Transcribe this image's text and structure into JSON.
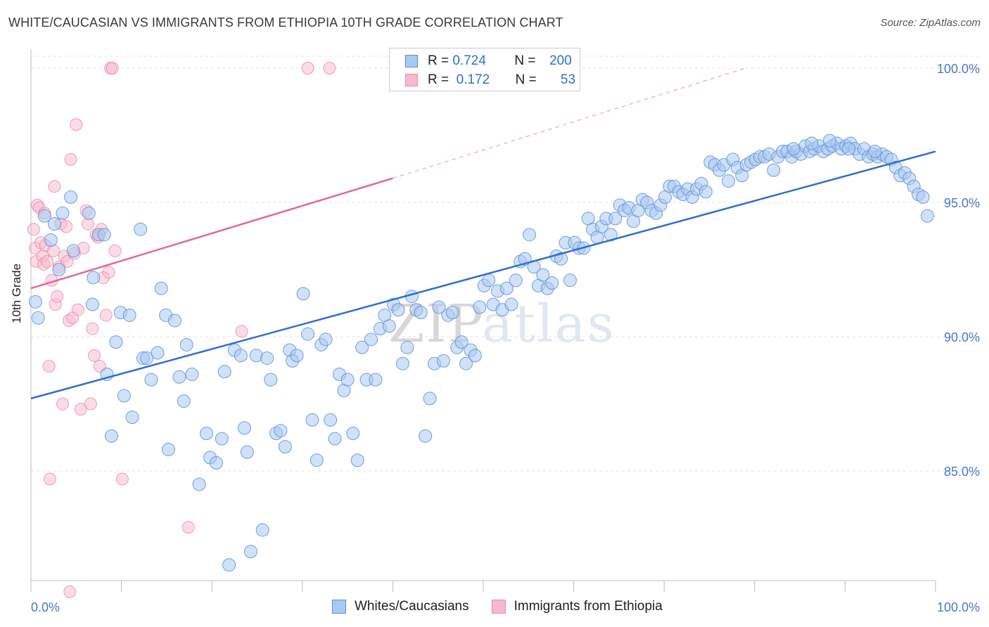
{
  "header": {
    "title": "WHITE/CAUCASIAN VS IMMIGRANTS FROM ETHIOPIA 10TH GRADE CORRELATION CHART",
    "source": "Source: ZipAtlas.com"
  },
  "watermark": {
    "zip": "ZIP",
    "atlas": "atlas"
  },
  "legend_top": {
    "rows": [
      {
        "r_label": "R =",
        "r_value": "0.724",
        "n_label": "N =",
        "n_value": "200"
      },
      {
        "r_label": "R =",
        "r_value": "0.172",
        "n_label": "N =",
        "n_value": "53"
      }
    ]
  },
  "legend_bottom": {
    "items": [
      {
        "label": "Whites/Caucasians"
      },
      {
        "label": "Immigrants from Ethiopia"
      }
    ]
  },
  "colors": {
    "blue_fill": "#a9c8f2",
    "blue_stroke": "#5b8fd8",
    "blue_line": "#2f6fd0",
    "pink_fill": "#f7b9cc",
    "pink_stroke": "#e889a8",
    "pink_line": "#e06a92",
    "grid": "#e3e3e3",
    "tick_text": "#4a78c8"
  },
  "chart_data": {
    "type": "scatter",
    "title": "WHITE/CAUCASIAN VS IMMIGRANTS FROM ETHIOPIA 10TH GRADE CORRELATION CHART",
    "xlabel": "",
    "ylabel": "10th Grade",
    "xlim": [
      0,
      100
    ],
    "ylim": [
      80.5,
      100.5
    ],
    "x_tick_labels": [
      "0.0%",
      "100.0%"
    ],
    "y_ticks": [
      85,
      90,
      95,
      100
    ],
    "y_tick_labels": [
      "85.0%",
      "90.0%",
      "95.0%",
      "100.0%"
    ],
    "grid": "horizontal dashed",
    "legend": "top-center and bottom",
    "series": [
      {
        "name": "Whites/Caucasians",
        "color": "#a9c8f2",
        "trend": {
          "x": [
            0,
            100
          ],
          "y": [
            87.7,
            96.9
          ]
        },
        "points": [
          [
            0.5,
            91.3
          ],
          [
            0.8,
            90.7
          ],
          [
            1.5,
            94.5
          ],
          [
            2.2,
            93.6
          ],
          [
            2.6,
            94.2
          ],
          [
            3.1,
            92.5
          ],
          [
            3.5,
            94.6
          ],
          [
            4.4,
            95.2
          ],
          [
            4.7,
            93.2
          ],
          [
            6.4,
            94.6
          ],
          [
            6.8,
            91.2
          ],
          [
            6.9,
            92.2
          ],
          [
            7.5,
            93.8
          ],
          [
            8.1,
            93.8
          ],
          [
            8.4,
            88.6
          ],
          [
            8.9,
            86.3
          ],
          [
            9.4,
            89.8
          ],
          [
            9.9,
            90.9
          ],
          [
            10.3,
            87.8
          ],
          [
            10.9,
            90.8
          ],
          [
            11.2,
            87.0
          ],
          [
            12.1,
            94.0
          ],
          [
            12.4,
            89.2
          ],
          [
            12.8,
            89.2
          ],
          [
            13.3,
            88.4
          ],
          [
            14.0,
            89.4
          ],
          [
            14.4,
            91.8
          ],
          [
            14.9,
            90.8
          ],
          [
            15.2,
            85.8
          ],
          [
            15.9,
            90.6
          ],
          [
            16.4,
            88.5
          ],
          [
            16.9,
            87.6
          ],
          [
            17.2,
            89.7
          ],
          [
            17.8,
            88.6
          ],
          [
            18.6,
            84.5
          ],
          [
            19.4,
            86.4
          ],
          [
            19.8,
            85.5
          ],
          [
            20.5,
            85.3
          ],
          [
            21.1,
            86.2
          ],
          [
            21.4,
            88.7
          ],
          [
            21.9,
            81.5
          ],
          [
            22.5,
            89.5
          ],
          [
            23.2,
            89.3
          ],
          [
            23.6,
            86.6
          ],
          [
            23.9,
            85.7
          ],
          [
            24.3,
            82.0
          ],
          [
            24.9,
            89.3
          ],
          [
            25.6,
            82.8
          ],
          [
            26.1,
            89.2
          ],
          [
            26.5,
            88.4
          ],
          [
            27.1,
            86.4
          ],
          [
            27.6,
            86.5
          ],
          [
            28.1,
            85.9
          ],
          [
            28.6,
            89.5
          ],
          [
            28.9,
            89.1
          ],
          [
            29.4,
            89.3
          ],
          [
            30.1,
            91.6
          ],
          [
            30.6,
            90.1
          ],
          [
            31.1,
            86.9
          ],
          [
            31.6,
            85.4
          ],
          [
            32.1,
            89.7
          ],
          [
            32.6,
            89.9
          ],
          [
            33.1,
            86.9
          ],
          [
            33.6,
            86.2
          ],
          [
            34.1,
            88.6
          ],
          [
            34.6,
            88.0
          ],
          [
            35.0,
            88.4
          ],
          [
            35.6,
            86.4
          ],
          [
            36.1,
            85.4
          ],
          [
            36.6,
            89.6
          ],
          [
            37.1,
            88.4
          ],
          [
            37.6,
            89.9
          ],
          [
            38.1,
            88.4
          ],
          [
            38.6,
            90.3
          ],
          [
            39.1,
            90.8
          ],
          [
            39.6,
            90.4
          ],
          [
            40.1,
            91.2
          ],
          [
            40.6,
            91.0
          ],
          [
            41.1,
            89.0
          ],
          [
            41.6,
            89.6
          ],
          [
            42.1,
            91.5
          ],
          [
            42.6,
            91.0
          ],
          [
            43.1,
            90.9
          ],
          [
            43.6,
            86.3
          ],
          [
            44.1,
            87.7
          ],
          [
            44.6,
            89.0
          ],
          [
            45.1,
            91.1
          ],
          [
            45.6,
            89.1
          ],
          [
            46.1,
            90.8
          ],
          [
            46.6,
            90.9
          ],
          [
            47.1,
            89.6
          ],
          [
            47.6,
            89.8
          ],
          [
            48.1,
            89.0
          ],
          [
            48.6,
            89.5
          ],
          [
            49.1,
            89.3
          ],
          [
            49.6,
            91.1
          ],
          [
            50.1,
            91.9
          ],
          [
            50.6,
            92.1
          ],
          [
            51.1,
            91.2
          ],
          [
            51.6,
            91.7
          ],
          [
            52.1,
            91.0
          ],
          [
            52.6,
            91.8
          ],
          [
            53.1,
            91.2
          ],
          [
            53.6,
            92.1
          ],
          [
            54.1,
            92.8
          ],
          [
            54.6,
            92.9
          ],
          [
            55.1,
            93.8
          ],
          [
            55.6,
            92.6
          ],
          [
            56.1,
            91.9
          ],
          [
            56.6,
            92.3
          ],
          [
            57.1,
            91.8
          ],
          [
            57.6,
            92.0
          ],
          [
            58.1,
            93.0
          ],
          [
            58.6,
            92.9
          ],
          [
            59.1,
            93.5
          ],
          [
            59.6,
            92.1
          ],
          [
            60.1,
            93.5
          ],
          [
            60.6,
            93.3
          ],
          [
            61.1,
            93.3
          ],
          [
            61.6,
            94.4
          ],
          [
            62.1,
            94.0
          ],
          [
            62.6,
            93.7
          ],
          [
            63.1,
            94.1
          ],
          [
            63.6,
            94.4
          ],
          [
            64.1,
            93.8
          ],
          [
            64.6,
            94.4
          ],
          [
            65.1,
            94.9
          ],
          [
            65.6,
            94.7
          ],
          [
            66.1,
            94.8
          ],
          [
            66.6,
            94.3
          ],
          [
            67.1,
            94.7
          ],
          [
            67.6,
            95.1
          ],
          [
            68.1,
            95.0
          ],
          [
            68.6,
            94.7
          ],
          [
            69.1,
            94.6
          ],
          [
            69.6,
            94.9
          ],
          [
            70.1,
            95.2
          ],
          [
            70.6,
            95.6
          ],
          [
            71.1,
            95.6
          ],
          [
            71.6,
            95.4
          ],
          [
            72.1,
            95.3
          ],
          [
            72.6,
            95.5
          ],
          [
            73.1,
            95.2
          ],
          [
            73.6,
            95.5
          ],
          [
            74.1,
            95.7
          ],
          [
            74.6,
            95.4
          ],
          [
            75.1,
            96.5
          ],
          [
            75.6,
            96.4
          ],
          [
            76.1,
            96.2
          ],
          [
            76.6,
            96.4
          ],
          [
            77.1,
            95.8
          ],
          [
            77.6,
            96.6
          ],
          [
            78.1,
            96.3
          ],
          [
            78.6,
            96.0
          ],
          [
            79.1,
            96.4
          ],
          [
            79.6,
            96.5
          ],
          [
            80.1,
            96.6
          ],
          [
            80.6,
            96.7
          ],
          [
            81.1,
            96.7
          ],
          [
            81.6,
            96.8
          ],
          [
            82.1,
            96.2
          ],
          [
            82.6,
            96.7
          ],
          [
            83.1,
            96.9
          ],
          [
            83.6,
            96.9
          ],
          [
            84.1,
            96.7
          ],
          [
            84.6,
            96.9
          ],
          [
            85.1,
            96.8
          ],
          [
            85.6,
            97.1
          ],
          [
            86.1,
            96.9
          ],
          [
            86.6,
            97.0
          ],
          [
            87.1,
            97.1
          ],
          [
            87.6,
            96.9
          ],
          [
            88.1,
            97.0
          ],
          [
            88.6,
            97.1
          ],
          [
            89.1,
            97.2
          ],
          [
            89.6,
            97.0
          ],
          [
            90.1,
            97.1
          ],
          [
            90.6,
            97.2
          ],
          [
            91.1,
            97.0
          ],
          [
            91.6,
            96.8
          ],
          [
            92.1,
            97.0
          ],
          [
            92.6,
            96.7
          ],
          [
            93.1,
            96.8
          ],
          [
            93.6,
            96.7
          ],
          [
            94.1,
            96.8
          ],
          [
            94.6,
            96.7
          ],
          [
            95.1,
            96.6
          ],
          [
            95.6,
            96.3
          ],
          [
            96.1,
            96.0
          ],
          [
            96.6,
            96.1
          ],
          [
            97.1,
            95.9
          ],
          [
            97.6,
            95.6
          ],
          [
            98.1,
            95.3
          ],
          [
            98.6,
            95.2
          ],
          [
            99.1,
            94.5
          ],
          [
            93.3,
            96.9
          ],
          [
            90.4,
            97.0
          ],
          [
            88.3,
            97.3
          ],
          [
            86.3,
            97.2
          ],
          [
            84.3,
            97.0
          ]
        ]
      },
      {
        "name": "Immigrants from Ethiopia",
        "color": "#f7b9cc",
        "trend": {
          "x": [
            0,
            40
          ],
          "y": [
            91.8,
            95.9
          ],
          "dashed_to": [
            79,
            100.0
          ]
        },
        "points": [
          [
            0.3,
            94.0
          ],
          [
            0.5,
            93.3
          ],
          [
            0.6,
            92.8
          ],
          [
            0.7,
            94.9
          ],
          [
            0.9,
            94.8
          ],
          [
            1.1,
            93.5
          ],
          [
            1.3,
            93.0
          ],
          [
            1.4,
            92.7
          ],
          [
            1.5,
            94.6
          ],
          [
            1.6,
            93.4
          ],
          [
            1.8,
            92.8
          ],
          [
            2.0,
            88.9
          ],
          [
            2.1,
            84.7
          ],
          [
            2.3,
            92.1
          ],
          [
            2.5,
            93.2
          ],
          [
            2.6,
            95.6
          ],
          [
            2.7,
            91.2
          ],
          [
            2.9,
            91.5
          ],
          [
            3.1,
            92.6
          ],
          [
            3.3,
            94.2
          ],
          [
            3.5,
            87.5
          ],
          [
            3.7,
            93.0
          ],
          [
            3.9,
            94.1
          ],
          [
            4.0,
            92.8
          ],
          [
            4.2,
            90.6
          ],
          [
            4.4,
            96.6
          ],
          [
            4.6,
            90.7
          ],
          [
            4.8,
            93.1
          ],
          [
            5.0,
            97.9
          ],
          [
            5.2,
            91.0
          ],
          [
            5.5,
            87.3
          ],
          [
            5.8,
            93.3
          ],
          [
            6.1,
            94.7
          ],
          [
            6.3,
            94.2
          ],
          [
            6.6,
            87.5
          ],
          [
            6.8,
            90.3
          ],
          [
            7.0,
            89.3
          ],
          [
            7.2,
            93.8
          ],
          [
            7.4,
            93.7
          ],
          [
            7.6,
            88.9
          ],
          [
            7.8,
            94.0
          ],
          [
            8.0,
            92.2
          ],
          [
            8.3,
            90.8
          ],
          [
            8.6,
            92.4
          ],
          [
            8.8,
            100.0
          ],
          [
            9.0,
            100.0
          ],
          [
            9.3,
            93.2
          ],
          [
            10.1,
            84.7
          ],
          [
            17.4,
            82.9
          ],
          [
            23.3,
            90.2
          ],
          [
            30.6,
            100.0
          ],
          [
            33.0,
            100.0
          ],
          [
            4.3,
            80.5
          ]
        ]
      }
    ]
  }
}
